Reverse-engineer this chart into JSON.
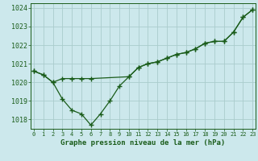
{
  "title": "Graphe pression niveau de la mer (hPa)",
  "background_color": "#cce8ec",
  "grid_color": "#aacccc",
  "line_color": "#1a5c1a",
  "marker_color": "#1a5c1a",
  "x_values": [
    0,
    1,
    2,
    3,
    4,
    5,
    6,
    7,
    8,
    9,
    10,
    11,
    12,
    13,
    14,
    15,
    16,
    17,
    18,
    19,
    20,
    21,
    22,
    23
  ],
  "series1_x": [
    0,
    1,
    2,
    3,
    4,
    5,
    6,
    7,
    8,
    9,
    10,
    11,
    12,
    13,
    14,
    15,
    16,
    17,
    18,
    19,
    20,
    21,
    22,
    23
  ],
  "series1_y": [
    1020.6,
    1020.4,
    1020.0,
    1019.1,
    1018.5,
    1018.3,
    1017.7,
    1018.3,
    1019.0,
    1019.8,
    1020.3,
    1020.8,
    1021.0,
    1021.1,
    1021.3,
    1021.5,
    1021.6,
    1021.8,
    1022.1,
    1022.2,
    1022.2,
    1022.7,
    1023.5,
    1023.9
  ],
  "series2_x": [
    0,
    1,
    2,
    3,
    4,
    5,
    6,
    10,
    11,
    12,
    13,
    14,
    15,
    16,
    17,
    18,
    19,
    20,
    21,
    22,
    23
  ],
  "series2_y": [
    1020.6,
    1020.4,
    1020.0,
    1020.2,
    1020.2,
    1020.2,
    1020.2,
    1020.3,
    1020.8,
    1021.0,
    1021.1,
    1021.3,
    1021.5,
    1021.6,
    1021.8,
    1022.1,
    1022.2,
    1022.2,
    1022.7,
    1023.5,
    1023.9
  ],
  "ylim_min": 1017.5,
  "ylim_max": 1024.25,
  "yticks": [
    1018,
    1019,
    1020,
    1021,
    1022,
    1023,
    1024
  ],
  "xlim_min": -0.3,
  "xlim_max": 23.3
}
